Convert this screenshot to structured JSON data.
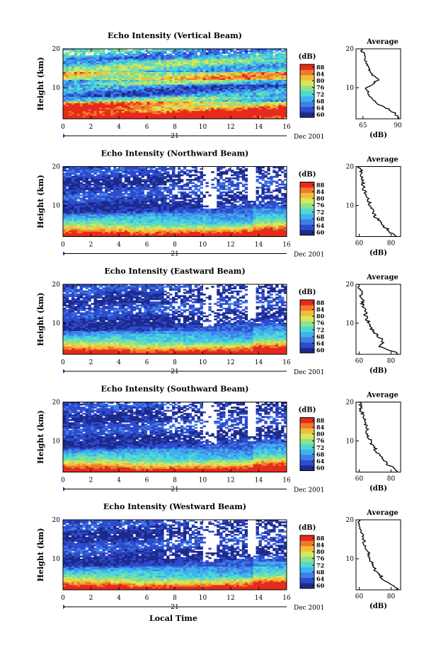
{
  "figure": {
    "x_axis_label": "Local Time",
    "date_label": "Dec 2001",
    "day_label": "21",
    "colorbar_unit": "(dB)",
    "colorbar_ticks": [
      "88",
      "84",
      "80",
      "76",
      "72",
      "68",
      "64",
      "60"
    ],
    "colormap": [
      "#1c2a8c",
      "#2e4bcd",
      "#3f7fe6",
      "#3fb2ef",
      "#4fd9d3",
      "#8de28a",
      "#d9e65a",
      "#f3bd3c",
      "#f07a2a",
      "#e62a1c"
    ],
    "average_title": "Average",
    "average_xlabel": "(dB)",
    "ylabel": "Height (km)"
  },
  "chart_data": [
    {
      "type": "heatmap",
      "title": "Echo Intensity (Vertical Beam)",
      "ylabel": "Height (km)",
      "xlabel": "Local Time",
      "x_ticks": [
        "0",
        "2",
        "4",
        "6",
        "8",
        "10",
        "12",
        "14",
        "16"
      ],
      "y_ticks": [
        "20",
        "10"
      ],
      "xlim": [
        0,
        16
      ],
      "ylim": [
        2,
        20
      ],
      "clim": [
        60,
        88
      ],
      "colorbar_ticks": [
        "88",
        "84",
        "80",
        "76",
        "72",
        "68",
        "64",
        "60"
      ],
      "average_profile": {
        "title": "Average",
        "xlabel": "(dB)",
        "x_ticks": [
          "65",
          "90"
        ],
        "xlim": [
          60,
          92
        ],
        "heights": [
          2,
          3,
          4,
          5,
          6,
          7,
          8,
          9,
          10,
          11,
          12,
          13,
          14,
          15,
          16,
          17,
          18,
          19,
          20
        ],
        "values": [
          90,
          89,
          86,
          80,
          75,
          71,
          70,
          69,
          67,
          72,
          76,
          73,
          70,
          69,
          68,
          67,
          66,
          65,
          64
        ]
      }
    },
    {
      "type": "heatmap",
      "title": "Echo Intensity (Northward Beam)",
      "ylabel": "Height (km)",
      "xlabel": "Local Time",
      "x_ticks": [
        "0",
        "2",
        "4",
        "6",
        "8",
        "10",
        "12",
        "14",
        "16"
      ],
      "y_ticks": [
        "20",
        "10"
      ],
      "xlim": [
        0,
        16
      ],
      "ylim": [
        2,
        20
      ],
      "clim": [
        60,
        88
      ],
      "colorbar_ticks": [
        "88",
        "84",
        "80",
        "76",
        "72",
        "68",
        "64",
        "60"
      ],
      "average_profile": {
        "title": "Average",
        "xlabel": "(dB)",
        "x_ticks": [
          "60",
          "80"
        ],
        "xlim": [
          58,
          86
        ],
        "heights": [
          2,
          3,
          4,
          5,
          6,
          7,
          8,
          9,
          10,
          11,
          12,
          13,
          14,
          15,
          16,
          17,
          18,
          19,
          20
        ],
        "values": [
          84,
          80,
          78,
          74,
          73,
          70,
          69,
          68,
          67,
          66,
          65,
          64,
          63,
          63,
          62,
          62,
          61,
          61,
          60
        ]
      }
    },
    {
      "type": "heatmap",
      "title": "Echo Intensity (Eastward Beam)",
      "ylabel": "Height (km)",
      "xlabel": "Local Time",
      "x_ticks": [
        "0",
        "2",
        "4",
        "6",
        "8",
        "10",
        "12",
        "14",
        "16"
      ],
      "y_ticks": [
        "20",
        "10"
      ],
      "xlim": [
        0,
        16
      ],
      "ylim": [
        2,
        20
      ],
      "clim": [
        60,
        88
      ],
      "colorbar_ticks": [
        "88",
        "84",
        "80",
        "76",
        "72",
        "68",
        "64",
        "60"
      ],
      "average_profile": {
        "title": "Average",
        "xlabel": "(dB)",
        "x_ticks": [
          "60",
          "80"
        ],
        "xlim": [
          58,
          86
        ],
        "heights": [
          2,
          3,
          4,
          5,
          6,
          7,
          8,
          9,
          10,
          11,
          12,
          13,
          14,
          15,
          16,
          17,
          18,
          19,
          20
        ],
        "values": [
          85,
          80,
          72,
          75,
          74,
          71,
          69,
          67,
          66,
          65,
          64,
          64,
          63,
          62,
          62,
          61,
          61,
          60,
          60
        ]
      }
    },
    {
      "type": "heatmap",
      "title": "Echo Intensity (Southward Beam)",
      "ylabel": "Height (km)",
      "xlabel": "Local Time",
      "x_ticks": [
        "0",
        "2",
        "4",
        "6",
        "8",
        "10",
        "12",
        "14",
        "16"
      ],
      "y_ticks": [
        "20",
        "10"
      ],
      "xlim": [
        0,
        16
      ],
      "ylim": [
        2,
        20
      ],
      "clim": [
        60,
        88
      ],
      "colorbar_ticks": [
        "88",
        "84",
        "80",
        "76",
        "72",
        "68",
        "64",
        "60"
      ],
      "average_profile": {
        "title": "Average",
        "xlabel": "(dB)",
        "x_ticks": [
          "60",
          "80"
        ],
        "xlim": [
          58,
          86
        ],
        "heights": [
          2,
          3,
          4,
          5,
          6,
          7,
          8,
          9,
          10,
          11,
          12,
          13,
          14,
          15,
          16,
          17,
          18,
          19,
          20
        ],
        "values": [
          85,
          82,
          78,
          75,
          74,
          71,
          70,
          68,
          67,
          66,
          65,
          65,
          64,
          63,
          63,
          62,
          61,
          61,
          60
        ]
      }
    },
    {
      "type": "heatmap",
      "title": "Echo Intensity (Westward Beam)",
      "ylabel": "Height (km)",
      "xlabel": "Local Time",
      "x_ticks": [
        "0",
        "2",
        "4",
        "6",
        "8",
        "10",
        "12",
        "14",
        "16"
      ],
      "y_ticks": [
        "20",
        "10"
      ],
      "xlim": [
        0,
        16
      ],
      "ylim": [
        2,
        20
      ],
      "clim": [
        60,
        88
      ],
      "colorbar_ticks": [
        "88",
        "84",
        "80",
        "76",
        "72",
        "68",
        "64",
        "60"
      ],
      "average_profile": {
        "title": "Average",
        "xlabel": "(dB)",
        "x_ticks": [
          "60",
          "80"
        ],
        "xlim": [
          58,
          86
        ],
        "heights": [
          2,
          3,
          4,
          5,
          6,
          7,
          8,
          9,
          10,
          11,
          12,
          13,
          14,
          15,
          16,
          17,
          18,
          19,
          20
        ],
        "values": [
          84,
          81,
          77,
          74,
          73,
          70,
          69,
          68,
          67,
          66,
          65,
          64,
          63,
          63,
          62,
          61,
          61,
          60,
          60
        ]
      }
    }
  ]
}
